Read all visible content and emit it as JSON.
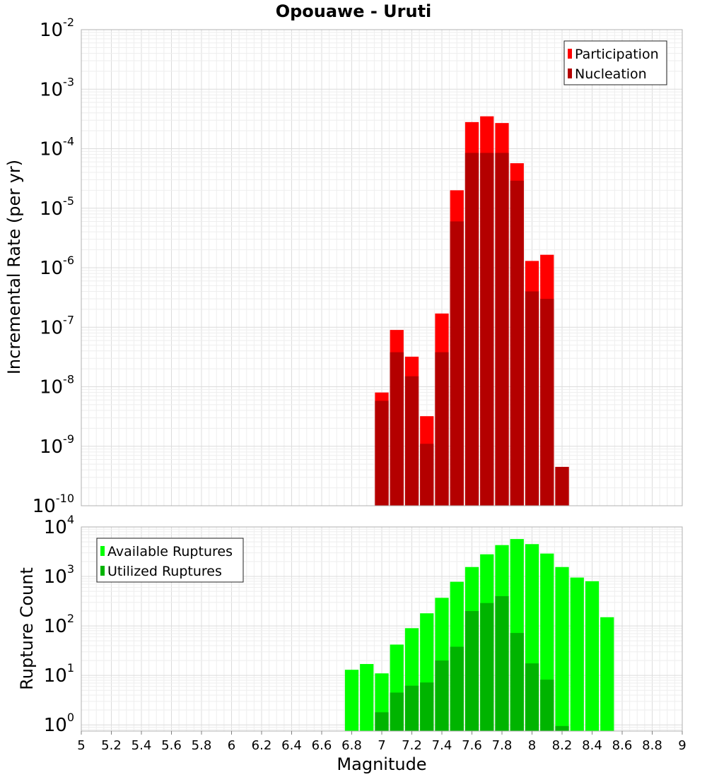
{
  "chart_data": [
    {
      "type": "bar",
      "title": "Opouawe - Uruti",
      "xlabel": "Magnitude",
      "ylabel": "Incremental Rate (per yr)",
      "yscale": "log",
      "ylim": [
        1e-10,
        0.01
      ],
      "y_tick_exponents": [
        "-10",
        "-9",
        "-8",
        "-7",
        "-6",
        "-5",
        "-4",
        "-3",
        "-2"
      ],
      "xlim": [
        5,
        9
      ],
      "bin_width": 0.1,
      "grid": true,
      "legend_position": "top-right",
      "x": [
        7.0,
        7.1,
        7.2,
        7.3,
        7.4,
        7.5,
        7.6,
        7.7,
        7.8,
        7.9,
        8.0,
        8.1,
        8.2
      ],
      "series": [
        {
          "name": "Participation",
          "color": "#ff0000",
          "values": [
            8e-09,
            9e-08,
            3.2e-08,
            3.2e-09,
            1.7e-07,
            2e-05,
            0.00028,
            0.00035,
            0.00027,
            5.7e-05,
            1.3e-06,
            1.65e-06,
            4.5e-10
          ]
        },
        {
          "name": "Nucleation",
          "color": "#b40000",
          "values": [
            5.8e-09,
            3.8e-08,
            1.5e-08,
            1.1e-09,
            3.8e-08,
            6e-06,
            8.5e-05,
            8.5e-05,
            8.5e-05,
            2.9e-05,
            4e-07,
            3e-07,
            4.5e-10
          ]
        }
      ]
    },
    {
      "type": "bar",
      "xlabel": "Magnitude",
      "ylabel": "Rupture Count",
      "yscale": "log",
      "ylim": [
        0.75,
        10000
      ],
      "y_tick_exponents": [
        "0",
        "1",
        "2",
        "3",
        "4"
      ],
      "xlim": [
        5,
        9
      ],
      "x_ticks": [
        "5",
        "5.2",
        "5.4",
        "5.6",
        "5.8",
        "6",
        "6.2",
        "6.4",
        "6.6",
        "6.8",
        "7",
        "7.2",
        "7.4",
        "7.6",
        "7.8",
        "8",
        "8.2",
        "8.4",
        "8.6",
        "8.8",
        "9"
      ],
      "bin_width": 0.1,
      "grid": true,
      "legend_position": "top-left",
      "x": [
        6.8,
        6.9,
        7.0,
        7.1,
        7.2,
        7.3,
        7.4,
        7.5,
        7.6,
        7.7,
        7.8,
        7.9,
        8.0,
        8.1,
        8.2,
        8.3,
        8.4,
        8.5
      ],
      "series": [
        {
          "name": "Available Ruptures",
          "color": "#00ff00",
          "values": [
            13,
            17,
            11,
            42,
            90,
            180,
            370,
            780,
            1550,
            2800,
            4300,
            5700,
            4500,
            2900,
            1550,
            950,
            800,
            150
          ]
        },
        {
          "name": "Utilized Ruptures",
          "color": "#00b400",
          "values": [
            0,
            0,
            1.8,
            4.5,
            6.2,
            7.2,
            20,
            38,
            200,
            290,
            400,
            72,
            17.5,
            8.2,
            0.95,
            0,
            0,
            0
          ]
        }
      ]
    }
  ]
}
